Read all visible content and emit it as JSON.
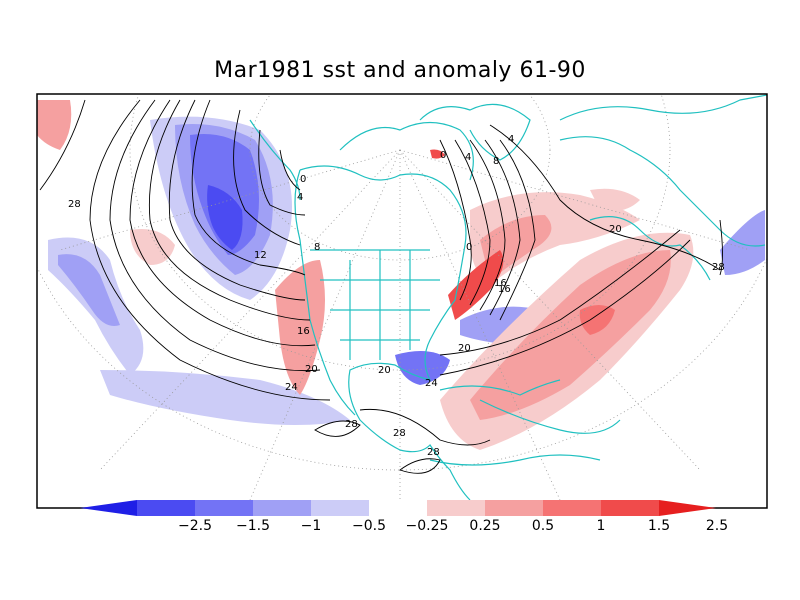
{
  "title": "Mar1981 sst and anomaly 61-90",
  "colorbar": {
    "colors": [
      "#1f1fe6",
      "#4b4bf2",
      "#7373f5",
      "#a0a0f5",
      "#ccccf7",
      "#ffffff",
      "#f7cccc",
      "#f5a0a0",
      "#f57373",
      "#f04b4b",
      "#e61f1f"
    ],
    "ticks": [
      "-2.5",
      "-1.5",
      "-1",
      "-0.5",
      "-0.25",
      "0.25",
      "0.5",
      "1",
      "1.5",
      "2.5"
    ]
  },
  "contour_labels": [
    "28",
    "4",
    "0",
    "8",
    "12",
    "16",
    "20",
    "24",
    "28",
    "28",
    "28",
    "0",
    "4",
    "8",
    "4",
    "0",
    "16",
    "16",
    "20",
    "20",
    "20",
    "24",
    "28"
  ],
  "colors": {
    "coast": "#20c0c0",
    "contour": "#000000",
    "frame": "#000000"
  }
}
